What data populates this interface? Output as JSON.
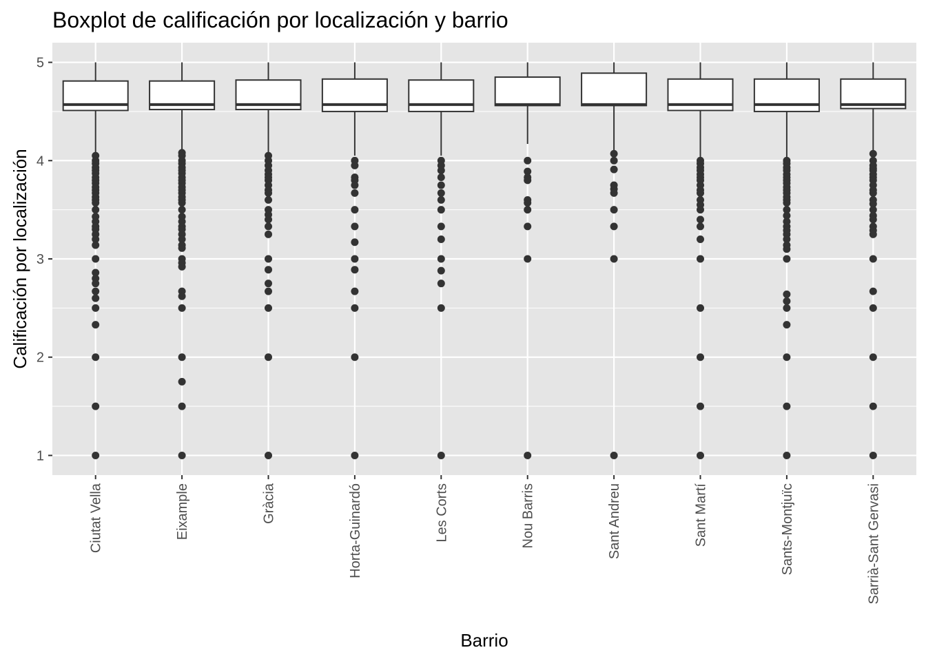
{
  "chart_data": {
    "type": "boxplot",
    "title": "Boxplot de calificación por localización y barrio",
    "xlabel": "Barrio",
    "ylabel": "Calificación por localización",
    "ylim": [
      0.8,
      5.2
    ],
    "yticks": [
      1,
      2,
      3,
      4,
      5
    ],
    "grid": true,
    "legend": "none",
    "colors": {
      "panel": "#e5e5e5",
      "grid": "#ffffff",
      "box_fill": "#ffffff",
      "box_line": "#333333",
      "outlier": "#333333",
      "tick_text": "#4d4d4d"
    },
    "categories": [
      "Ciutat Vella",
      "Eixample",
      "Gràcia",
      "Horta-Guinardó",
      "Les Corts",
      "Nou Barris",
      "Sant Andreu",
      "Sant Martí",
      "Sants-Montjuïc",
      "Sarrià-Sant Gervasi"
    ],
    "boxes": [
      {
        "q1": 4.51,
        "median": 4.57,
        "q3": 4.81,
        "whisker_low": 4.06,
        "whisker_high": 5.0,
        "outliers": [
          4.05,
          4.0,
          3.97,
          3.93,
          3.9,
          3.87,
          3.83,
          3.8,
          3.77,
          3.73,
          3.7,
          3.67,
          3.63,
          3.6,
          3.57,
          3.5,
          3.43,
          3.38,
          3.33,
          3.3,
          3.25,
          3.2,
          3.14,
          3.0,
          2.86,
          2.8,
          2.75,
          2.67,
          2.6,
          2.5,
          2.33,
          2.0,
          1.5,
          1.0
        ]
      },
      {
        "q1": 4.52,
        "median": 4.57,
        "q3": 4.81,
        "whisker_low": 4.08,
        "whisker_high": 5.0,
        "outliers": [
          4.08,
          4.05,
          4.0,
          3.97,
          3.93,
          3.9,
          3.87,
          3.83,
          3.8,
          3.77,
          3.73,
          3.7,
          3.67,
          3.63,
          3.6,
          3.57,
          3.5,
          3.43,
          3.38,
          3.33,
          3.3,
          3.25,
          3.2,
          3.14,
          3.11,
          3.0,
          2.96,
          2.92,
          2.67,
          2.62,
          2.5,
          2.0,
          1.75,
          1.5,
          1.0
        ]
      },
      {
        "q1": 4.52,
        "median": 4.57,
        "q3": 4.82,
        "whisker_low": 4.06,
        "whisker_high": 5.0,
        "outliers": [
          4.05,
          4.0,
          3.95,
          3.9,
          3.86,
          3.83,
          3.8,
          3.75,
          3.7,
          3.67,
          3.6,
          3.5,
          3.45,
          3.4,
          3.33,
          3.25,
          3.0,
          2.89,
          2.75,
          2.67,
          2.5,
          2.0,
          1.0
        ]
      },
      {
        "q1": 4.5,
        "median": 4.57,
        "q3": 4.83,
        "whisker_low": 4.05,
        "whisker_high": 5.0,
        "outliers": [
          4.0,
          3.95,
          3.83,
          3.8,
          3.75,
          3.67,
          3.5,
          3.33,
          3.17,
          3.0,
          2.89,
          2.67,
          2.5,
          2.0,
          1.0
        ]
      },
      {
        "q1": 4.5,
        "median": 4.57,
        "q3": 4.82,
        "whisker_low": 4.05,
        "whisker_high": 5.0,
        "outliers": [
          4.0,
          3.95,
          3.9,
          3.83,
          3.75,
          3.67,
          3.6,
          3.5,
          3.33,
          3.2,
          3.0,
          2.88,
          2.75,
          2.5,
          1.0
        ]
      },
      {
        "q1": 4.56,
        "median": 4.57,
        "q3": 4.85,
        "whisker_low": 4.17,
        "whisker_high": 5.0,
        "outliers": [
          4.0,
          3.89,
          3.83,
          3.8,
          3.6,
          3.57,
          3.5,
          3.33,
          3.0,
          1.0
        ]
      },
      {
        "q1": 4.56,
        "median": 4.57,
        "q3": 4.89,
        "whisker_low": 4.1,
        "whisker_high": 5.0,
        "outliers": [
          4.07,
          4.0,
          3.91,
          3.75,
          3.71,
          3.67,
          3.5,
          3.33,
          3.0,
          1.0
        ]
      },
      {
        "q1": 4.51,
        "median": 4.57,
        "q3": 4.83,
        "whisker_low": 4.03,
        "whisker_high": 5.0,
        "outliers": [
          4.0,
          3.97,
          3.93,
          3.9,
          3.86,
          3.83,
          3.8,
          3.75,
          3.7,
          3.67,
          3.6,
          3.55,
          3.5,
          3.4,
          3.33,
          3.2,
          3.0,
          2.5,
          2.0,
          1.5,
          1.0
        ]
      },
      {
        "q1": 4.5,
        "median": 4.57,
        "q3": 4.83,
        "whisker_low": 4.03,
        "whisker_high": 5.0,
        "outliers": [
          4.0,
          3.97,
          3.93,
          3.9,
          3.86,
          3.83,
          3.8,
          3.77,
          3.73,
          3.7,
          3.67,
          3.63,
          3.6,
          3.57,
          3.5,
          3.44,
          3.38,
          3.33,
          3.29,
          3.25,
          3.2,
          3.14,
          3.1,
          3.0,
          2.64,
          2.57,
          2.5,
          2.33,
          2.0,
          1.5,
          1.0
        ]
      },
      {
        "q1": 4.53,
        "median": 4.57,
        "q3": 4.83,
        "whisker_low": 4.09,
        "whisker_high": 5.0,
        "outliers": [
          4.07,
          4.0,
          3.95,
          3.92,
          3.9,
          3.86,
          3.83,
          3.8,
          3.75,
          3.7,
          3.67,
          3.6,
          3.56,
          3.5,
          3.44,
          3.4,
          3.33,
          3.29,
          3.25,
          3.0,
          2.67,
          2.5,
          2.0,
          1.5,
          1.0
        ]
      }
    ]
  }
}
